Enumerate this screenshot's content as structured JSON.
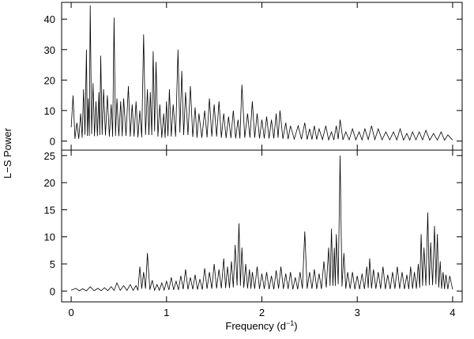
{
  "chart_data": [
    {
      "type": "line",
      "panel": "top",
      "xlim": [
        -0.1,
        4.1
      ],
      "ylim": [
        -3,
        45.5
      ],
      "xticks": [
        0,
        1,
        2,
        3,
        4
      ],
      "yticks": [
        0,
        10,
        20,
        30,
        40
      ],
      "grid": false,
      "peaks": [
        [
          0.02,
          15
        ],
        [
          0.06,
          6
        ],
        [
          0.1,
          9
        ],
        [
          0.13,
          17
        ],
        [
          0.16,
          30
        ],
        [
          0.18,
          14
        ],
        [
          0.2,
          44.5
        ],
        [
          0.23,
          19
        ],
        [
          0.26,
          13
        ],
        [
          0.29,
          16
        ],
        [
          0.31,
          28
        ],
        [
          0.34,
          17
        ],
        [
          0.38,
          15
        ],
        [
          0.42,
          12
        ],
        [
          0.45,
          40.5
        ],
        [
          0.48,
          14
        ],
        [
          0.52,
          13
        ],
        [
          0.55,
          14
        ],
        [
          0.6,
          18
        ],
        [
          0.64,
          12
        ],
        [
          0.68,
          13
        ],
        [
          0.72,
          10
        ],
        [
          0.76,
          35
        ],
        [
          0.8,
          17
        ],
        [
          0.83,
          16
        ],
        [
          0.86,
          29.5
        ],
        [
          0.89,
          26
        ],
        [
          0.93,
          12
        ],
        [
          0.97,
          9
        ],
        [
          1.0,
          13
        ],
        [
          1.03,
          17
        ],
        [
          1.07,
          12
        ],
        [
          1.12,
          30
        ],
        [
          1.16,
          23
        ],
        [
          1.2,
          16
        ],
        [
          1.25,
          18
        ],
        [
          1.3,
          11
        ],
        [
          1.34,
          9
        ],
        [
          1.4,
          10
        ],
        [
          1.45,
          14
        ],
        [
          1.5,
          12
        ],
        [
          1.55,
          13
        ],
        [
          1.6,
          9
        ],
        [
          1.65,
          8
        ],
        [
          1.7,
          10
        ],
        [
          1.75,
          7
        ],
        [
          1.79,
          18.5
        ],
        [
          1.85,
          9
        ],
        [
          1.9,
          13
        ],
        [
          1.95,
          9
        ],
        [
          2.0,
          7
        ],
        [
          2.05,
          8
        ],
        [
          2.1,
          7
        ],
        [
          2.15,
          9
        ],
        [
          2.19,
          10
        ],
        [
          2.25,
          6
        ],
        [
          2.3,
          5
        ],
        [
          2.38,
          5
        ],
        [
          2.45,
          6
        ],
        [
          2.5,
          4
        ],
        [
          2.55,
          5
        ],
        [
          2.6,
          4
        ],
        [
          2.67,
          5
        ],
        [
          2.73,
          3
        ],
        [
          2.78,
          5
        ],
        [
          2.82,
          7
        ],
        [
          2.88,
          3
        ],
        [
          2.95,
          4
        ],
        [
          3.02,
          3
        ],
        [
          3.08,
          4
        ],
        [
          3.15,
          5
        ],
        [
          3.22,
          4
        ],
        [
          3.3,
          3
        ],
        [
          3.38,
          3
        ],
        [
          3.45,
          4
        ],
        [
          3.52,
          2.5
        ],
        [
          3.58,
          3
        ],
        [
          3.65,
          3
        ],
        [
          3.72,
          3.5
        ],
        [
          3.8,
          2.5
        ],
        [
          3.88,
          3
        ],
        [
          3.95,
          2
        ]
      ]
    },
    {
      "type": "line",
      "panel": "bottom",
      "xlim": [
        -0.1,
        4.1
      ],
      "ylim": [
        -2,
        26
      ],
      "xticks": [
        0,
        1,
        2,
        3,
        4
      ],
      "yticks": [
        0,
        5,
        10,
        15,
        20,
        25
      ],
      "grid": false,
      "peaks": [
        [
          0.05,
          0.5
        ],
        [
          0.12,
          0.4
        ],
        [
          0.2,
          0.8
        ],
        [
          0.28,
          0.5
        ],
        [
          0.35,
          0.6
        ],
        [
          0.42,
          0.8
        ],
        [
          0.48,
          1.5
        ],
        [
          0.55,
          1.0
        ],
        [
          0.62,
          1.2
        ],
        [
          0.68,
          1.0
        ],
        [
          0.72,
          4.5
        ],
        [
          0.76,
          3.5
        ],
        [
          0.8,
          7
        ],
        [
          0.85,
          2
        ],
        [
          0.9,
          1.2
        ],
        [
          0.95,
          1.5
        ],
        [
          1.0,
          1.8
        ],
        [
          1.05,
          2.5
        ],
        [
          1.1,
          1.8
        ],
        [
          1.15,
          2.8
        ],
        [
          1.2,
          4
        ],
        [
          1.25,
          2.5
        ],
        [
          1.3,
          3
        ],
        [
          1.35,
          2.2
        ],
        [
          1.4,
          4.2
        ],
        [
          1.45,
          3.5
        ],
        [
          1.5,
          5
        ],
        [
          1.55,
          4
        ],
        [
          1.6,
          6
        ],
        [
          1.64,
          4.5
        ],
        [
          1.68,
          5.5
        ],
        [
          1.72,
          8.5
        ],
        [
          1.76,
          12.5
        ],
        [
          1.79,
          8
        ],
        [
          1.83,
          5
        ],
        [
          1.87,
          4
        ],
        [
          1.9,
          3.5
        ],
        [
          1.95,
          4.5
        ],
        [
          2.0,
          3.2
        ],
        [
          2.05,
          3.5
        ],
        [
          2.1,
          2.8
        ],
        [
          2.15,
          3.8
        ],
        [
          2.2,
          4.5
        ],
        [
          2.25,
          3.2
        ],
        [
          2.3,
          3.5
        ],
        [
          2.35,
          2.5
        ],
        [
          2.4,
          3.5
        ],
        [
          2.45,
          11
        ],
        [
          2.5,
          3.5
        ],
        [
          2.55,
          4
        ],
        [
          2.6,
          3.2
        ],
        [
          2.65,
          5.5
        ],
        [
          2.7,
          8
        ],
        [
          2.73,
          11.5
        ],
        [
          2.76,
          8
        ],
        [
          2.78,
          10.5
        ],
        [
          2.82,
          25
        ],
        [
          2.86,
          7
        ],
        [
          2.9,
          3.5
        ],
        [
          2.95,
          3.5
        ],
        [
          3.0,
          2.8
        ],
        [
          3.05,
          3.2
        ],
        [
          3.1,
          4.5
        ],
        [
          3.13,
          6
        ],
        [
          3.17,
          4
        ],
        [
          3.22,
          3.5
        ],
        [
          3.27,
          4.5
        ],
        [
          3.32,
          3
        ],
        [
          3.37,
          3.5
        ],
        [
          3.42,
          4.5
        ],
        [
          3.47,
          3.5
        ],
        [
          3.52,
          3
        ],
        [
          3.56,
          4.5
        ],
        [
          3.6,
          3.5
        ],
        [
          3.64,
          5
        ],
        [
          3.67,
          10.5
        ],
        [
          3.7,
          8
        ],
        [
          3.74,
          14.5
        ],
        [
          3.77,
          9
        ],
        [
          3.81,
          12
        ],
        [
          3.84,
          10.5
        ],
        [
          3.87,
          5.5
        ],
        [
          3.9,
          3.5
        ],
        [
          3.93,
          3
        ],
        [
          3.97,
          2.8
        ]
      ]
    }
  ],
  "axes": {
    "xlabel_main": "Frequency (d",
    "xlabel_sup": "−1",
    "xlabel_close": ")",
    "ylabel": "L−S Power",
    "xtick_labels": [
      "0",
      "1",
      "2",
      "3",
      "4"
    ],
    "top_ytick_labels": [
      "0",
      "10",
      "20",
      "30",
      "40"
    ],
    "bottom_ytick_labels": [
      "0",
      "5",
      "10",
      "15",
      "20",
      "25"
    ]
  }
}
